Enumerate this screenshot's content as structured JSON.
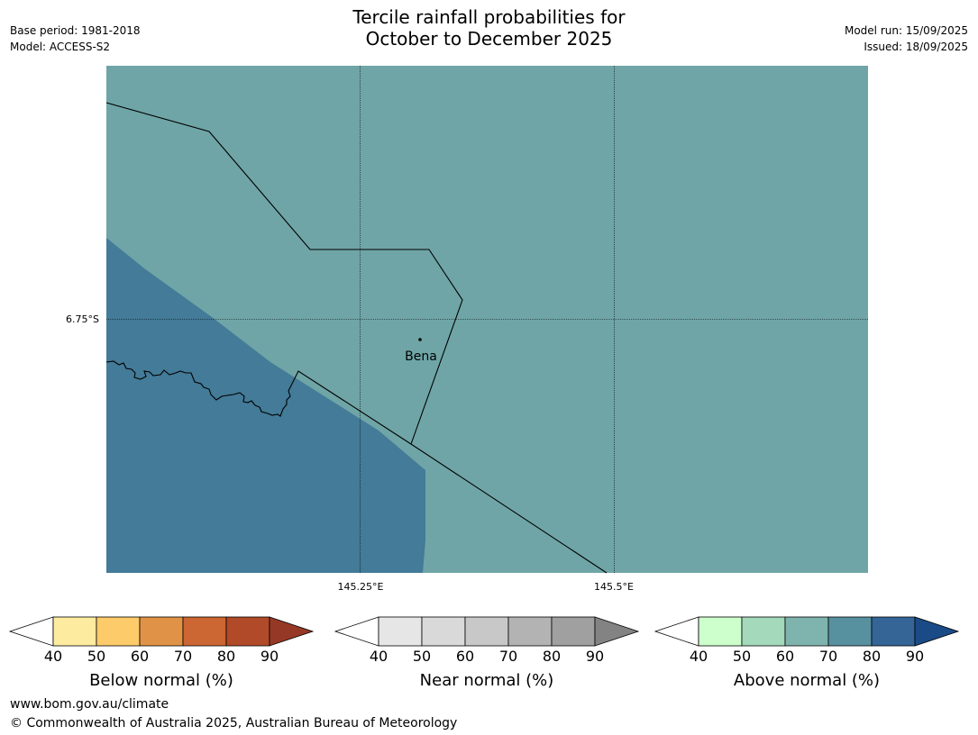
{
  "title": {
    "line1": "Tercile rainfall probabilities for",
    "line2": "October to December 2025"
  },
  "meta_left": {
    "base_period": "Base period: 1981-2018",
    "model": "Model: ACCESS-S2"
  },
  "meta_right": {
    "model_run": "Model run: 15/09/2025",
    "issued": "Issued: 18/09/2025"
  },
  "map": {
    "latitude_labels": [
      "6.75°S"
    ],
    "longitude_labels": [
      "145.25°E",
      "145.5°E"
    ],
    "place": "Bena",
    "colors": {
      "above_70": "#6fa5a7",
      "above_80": "#437b98",
      "boundary": "#000000"
    }
  },
  "colorbars": [
    {
      "label": "Below normal (%)",
      "ticks": [
        "40",
        "50",
        "60",
        "70",
        "80",
        "90"
      ],
      "colors": [
        "#ffffff",
        "#fdeba0",
        "#fdcb6a",
        "#e09346",
        "#cc6633",
        "#b14a28",
        "#963826"
      ]
    },
    {
      "label": "Near normal (%)",
      "ticks": [
        "40",
        "50",
        "60",
        "70",
        "80",
        "90"
      ],
      "colors": [
        "#ffffff",
        "#e6e6e6",
        "#d9d9d9",
        "#c8c8c8",
        "#b3b3b3",
        "#a0a0a0",
        "#838383"
      ]
    },
    {
      "label": "Above normal (%)",
      "ticks": [
        "40",
        "50",
        "60",
        "70",
        "80",
        "90"
      ],
      "colors": [
        "#ffffff",
        "#ccffcc",
        "#a4d9bc",
        "#7fb4ae",
        "#57909f",
        "#346596",
        "#1b4b86"
      ]
    }
  ],
  "footer": {
    "url": "www.bom.gov.au/climate",
    "copyright": "© Commonwealth of Australia 2025, Australian Bureau of Meteorology"
  }
}
